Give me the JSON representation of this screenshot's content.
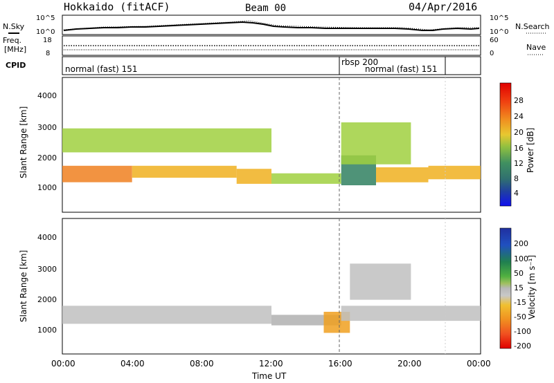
{
  "header": {
    "title": "Hokkaido (fitACF)",
    "beam": "Beam 00",
    "date": "04/Apr/2016"
  },
  "noise_panel": {
    "left_label": "N.Sky",
    "left_ticks": [
      "10^5",
      "10^0"
    ],
    "right_label": "N.Search",
    "right_ticks": [
      "10^5",
      "10^0"
    ]
  },
  "freq_panel": {
    "label_top": "Freq.",
    "label_unit": "[MHz]",
    "left_ticks": [
      "18",
      "8"
    ],
    "right_label": "Nave",
    "right_ticks": [
      "60",
      "0"
    ]
  },
  "cpid_panel": {
    "label": "CPID",
    "modes": [
      {
        "name": "normal (fast) 151",
        "start_hour": 0
      },
      {
        "name": "rbsp 200",
        "start_hour": 16
      },
      {
        "name": "normal (fast) 151",
        "start_hour": 16.2
      }
    ]
  },
  "axes": {
    "y_label": "Slant Range [km]",
    "x_label": "Time UT",
    "x_ticks": [
      "00:00",
      "04:00",
      "08:00",
      "12:00",
      "16:00",
      "20:00",
      "00:00"
    ],
    "y_ticks": [
      "1000",
      "2000",
      "3000",
      "4000"
    ]
  },
  "colorbars": {
    "power": {
      "label": "Power [dB]",
      "ticks": [
        "28",
        "24",
        "20",
        "16",
        "12",
        "8",
        "4"
      ],
      "colors": [
        "#f01010",
        "#f04818",
        "#f08020",
        "#f0b020",
        "#e0d030",
        "#a0d040",
        "#40a050",
        "#308060",
        "#205090",
        "#1030d0",
        "#1010f0"
      ]
    },
    "velocity": {
      "label": "Velocity [m s⁻¹]",
      "ticks": [
        "200",
        "100",
        "50",
        "15",
        "-15",
        "-50",
        "-100",
        "-200"
      ],
      "colors": [
        "#2040b0",
        "#2060c0",
        "#208060",
        "#40b040",
        "#80d040",
        "#b0b0b0",
        "#c0c0c0",
        "#f0c030",
        "#f0a020",
        "#f07020",
        "#f04020",
        "#f01010"
      ]
    }
  },
  "chart_data": [
    {
      "type": "heatmap",
      "name": "power",
      "x_unit": "hours UT",
      "xlim": [
        0,
        24
      ],
      "ylim": [
        0,
        4500
      ],
      "clim": [
        0,
        30
      ],
      "bands": [
        {
          "t0": 0,
          "t1": 4,
          "r0": 1000,
          "r1": 1550,
          "value": 24
        },
        {
          "t0": 4,
          "t1": 10,
          "r0": 1150,
          "r1": 1550,
          "value": 22
        },
        {
          "t0": 10,
          "t1": 12,
          "r0": 950,
          "r1": 1450,
          "value": 20
        },
        {
          "t0": 12,
          "t1": 16,
          "r0": 950,
          "r1": 1300,
          "value": 14
        },
        {
          "t0": 16,
          "t1": 18,
          "r0": 900,
          "r1": 1900,
          "value": 8
        },
        {
          "t0": 18,
          "t1": 21,
          "r0": 1000,
          "r1": 1500,
          "value": 22
        },
        {
          "t0": 21,
          "t1": 24,
          "r0": 1100,
          "r1": 1550,
          "value": 20
        },
        {
          "t0": 0,
          "t1": 12,
          "r0": 2000,
          "r1": 2800,
          "value": 14
        },
        {
          "t0": 16,
          "t1": 20,
          "r0": 1600,
          "r1": 3000,
          "value": 16
        }
      ]
    },
    {
      "type": "heatmap",
      "name": "velocity",
      "x_unit": "hours UT",
      "xlim": [
        0,
        24
      ],
      "ylim": [
        0,
        4500
      ],
      "clim": [
        -200,
        200
      ],
      "bands": [
        {
          "t0": 0,
          "t1": 12,
          "r0": 1000,
          "r1": 1600,
          "value": 0
        },
        {
          "t0": 12,
          "t1": 16,
          "r0": 950,
          "r1": 1300,
          "value": 20
        },
        {
          "t0": 15,
          "t1": 16.5,
          "r0": 700,
          "r1": 1400,
          "value": -80
        },
        {
          "t0": 16,
          "t1": 24,
          "r0": 1100,
          "r1": 1600,
          "value": 0
        },
        {
          "t0": 16.5,
          "t1": 20,
          "r0": 1800,
          "r1": 3000,
          "value": 0
        }
      ]
    }
  ]
}
